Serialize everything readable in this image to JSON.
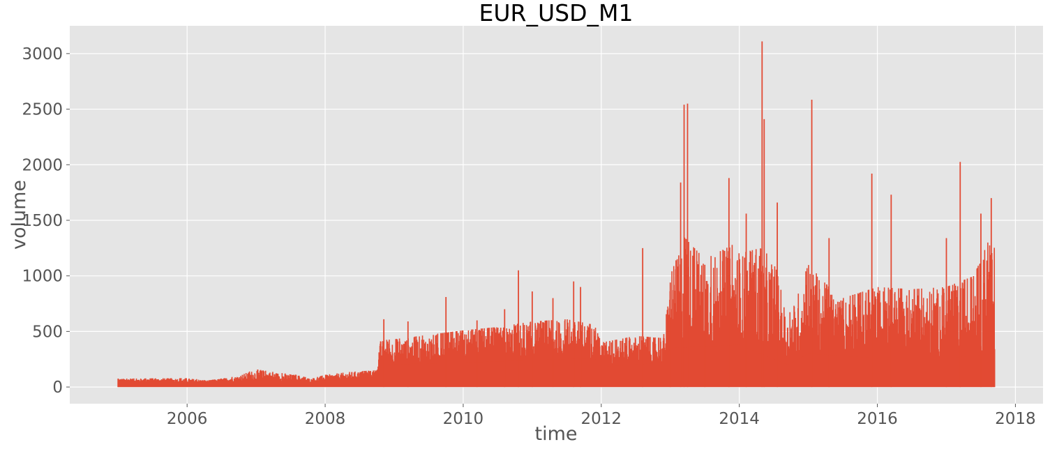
{
  "chart_data": {
    "type": "line",
    "title": "EUR_USD_M1",
    "xlabel": "time",
    "ylabel": "volume",
    "xlim": [
      2004.3,
      2018.4
    ],
    "ylim": [
      -150,
      3250
    ],
    "grid": true,
    "x_ticks": [
      2006,
      2008,
      2010,
      2012,
      2014,
      2016,
      2018
    ],
    "x_tick_labels": [
      "2006",
      "2008",
      "2010",
      "2012",
      "2014",
      "2016",
      "2018"
    ],
    "y_ticks": [
      0,
      500,
      1000,
      1500,
      2000,
      2500,
      3000
    ],
    "y_tick_labels": [
      "0",
      "500",
      "1000",
      "1500",
      "2000",
      "2500",
      "3000"
    ],
    "series": [
      {
        "name": "volume",
        "color": "#E24A33",
        "x_start": 2005.0,
        "x_end": 2017.7,
        "envelope": [
          [
            2005.0,
            75
          ],
          [
            2005.5,
            78
          ],
          [
            2006.0,
            80
          ],
          [
            2006.3,
            60
          ],
          [
            2006.7,
            95
          ],
          [
            2007.0,
            160
          ],
          [
            2007.3,
            130
          ],
          [
            2007.6,
            110
          ],
          [
            2007.8,
            75
          ],
          [
            2008.0,
            110
          ],
          [
            2008.4,
            140
          ],
          [
            2008.75,
            150
          ],
          [
            2008.8,
            420
          ],
          [
            2009.0,
            430
          ],
          [
            2009.5,
            470
          ],
          [
            2010.0,
            510
          ],
          [
            2010.5,
            540
          ],
          [
            2011.0,
            590
          ],
          [
            2011.5,
            610
          ],
          [
            2011.9,
            560
          ],
          [
            2012.0,
            400
          ],
          [
            2012.5,
            460
          ],
          [
            2012.9,
            440
          ],
          [
            2013.0,
            1000
          ],
          [
            2013.2,
            1350
          ],
          [
            2013.5,
            1150
          ],
          [
            2013.9,
            1280
          ],
          [
            2014.0,
            1200
          ],
          [
            2014.3,
            1250
          ],
          [
            2014.5,
            1150
          ],
          [
            2014.7,
            620
          ],
          [
            2015.0,
            1100
          ],
          [
            2015.3,
            900
          ],
          [
            2015.5,
            800
          ],
          [
            2016.0,
            900
          ],
          [
            2016.5,
            880
          ],
          [
            2017.0,
            900
          ],
          [
            2017.4,
            1000
          ],
          [
            2017.6,
            1300
          ],
          [
            2017.7,
            1250
          ]
        ],
        "floor": [
          [
            2005.0,
            50
          ],
          [
            2006.2,
            40
          ],
          [
            2007.0,
            60
          ],
          [
            2007.8,
            45
          ],
          [
            2008.7,
            90
          ],
          [
            2008.8,
            200
          ],
          [
            2010.0,
            220
          ],
          [
            2011.9,
            260
          ],
          [
            2012.0,
            180
          ],
          [
            2012.9,
            220
          ],
          [
            2013.0,
            350
          ],
          [
            2014.0,
            380
          ],
          [
            2014.7,
            200
          ],
          [
            2015.0,
            300
          ],
          [
            2016.0,
            260
          ],
          [
            2017.0,
            260
          ],
          [
            2017.7,
            300
          ]
        ],
        "spikes": [
          [
            2008.85,
            610
          ],
          [
            2009.2,
            590
          ],
          [
            2009.75,
            810
          ],
          [
            2010.2,
            600
          ],
          [
            2010.6,
            700
          ],
          [
            2010.8,
            1050
          ],
          [
            2011.0,
            860
          ],
          [
            2011.3,
            800
          ],
          [
            2011.6,
            950
          ],
          [
            2011.7,
            900
          ],
          [
            2012.6,
            1250
          ],
          [
            2013.0,
            940
          ],
          [
            2013.15,
            1840
          ],
          [
            2013.2,
            2540
          ],
          [
            2013.25,
            2550
          ],
          [
            2013.5,
            1100
          ],
          [
            2013.85,
            1880
          ],
          [
            2014.1,
            1560
          ],
          [
            2014.33,
            3110
          ],
          [
            2014.36,
            2410
          ],
          [
            2014.55,
            1660
          ],
          [
            2015.05,
            2585
          ],
          [
            2015.3,
            1340
          ],
          [
            2015.92,
            1920
          ],
          [
            2016.2,
            1730
          ],
          [
            2017.0,
            1340
          ],
          [
            2017.2,
            2025
          ],
          [
            2017.5,
            1560
          ],
          [
            2017.65,
            1700
          ]
        ]
      }
    ]
  }
}
